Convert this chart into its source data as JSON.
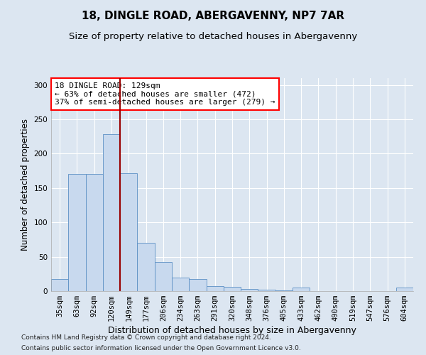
{
  "title1": "18, DINGLE ROAD, ABERGAVENNY, NP7 7AR",
  "title2": "Size of property relative to detached houses in Abergavenny",
  "xlabel": "Distribution of detached houses by size in Abergavenny",
  "ylabel": "Number of detached properties",
  "footnote1": "Contains HM Land Registry data © Crown copyright and database right 2024.",
  "footnote2": "Contains public sector information licensed under the Open Government Licence v3.0.",
  "annotation_line1": "18 DINGLE ROAD: 129sqm",
  "annotation_line2": "← 63% of detached houses are smaller (472)",
  "annotation_line3": "37% of semi-detached houses are larger (279) →",
  "bar_color": "#c8d9ee",
  "bar_edge_color": "#5b8fc4",
  "red_line_color": "#990000",
  "categories": [
    "35sqm",
    "63sqm",
    "92sqm",
    "120sqm",
    "149sqm",
    "177sqm",
    "206sqm",
    "234sqm",
    "263sqm",
    "291sqm",
    "320sqm",
    "348sqm",
    "376sqm",
    "405sqm",
    "433sqm",
    "462sqm",
    "490sqm",
    "519sqm",
    "547sqm",
    "576sqm",
    "604sqm"
  ],
  "values": [
    18,
    170,
    170,
    228,
    172,
    70,
    42,
    20,
    18,
    7,
    6,
    3,
    2,
    1,
    5,
    0,
    0,
    0,
    0,
    0,
    5
  ],
  "red_line_x": 3.5,
  "ylim": [
    0,
    310
  ],
  "yticks": [
    0,
    50,
    100,
    150,
    200,
    250,
    300
  ],
  "background_color": "#dce6f1",
  "plot_bg_color": "#dce6f1",
  "grid_color": "#ffffff",
  "title1_fontsize": 11,
  "title2_fontsize": 9.5,
  "annotation_fontsize": 8,
  "xlabel_fontsize": 9,
  "ylabel_fontsize": 8.5,
  "tick_fontsize": 7.5,
  "footnote_fontsize": 6.5
}
